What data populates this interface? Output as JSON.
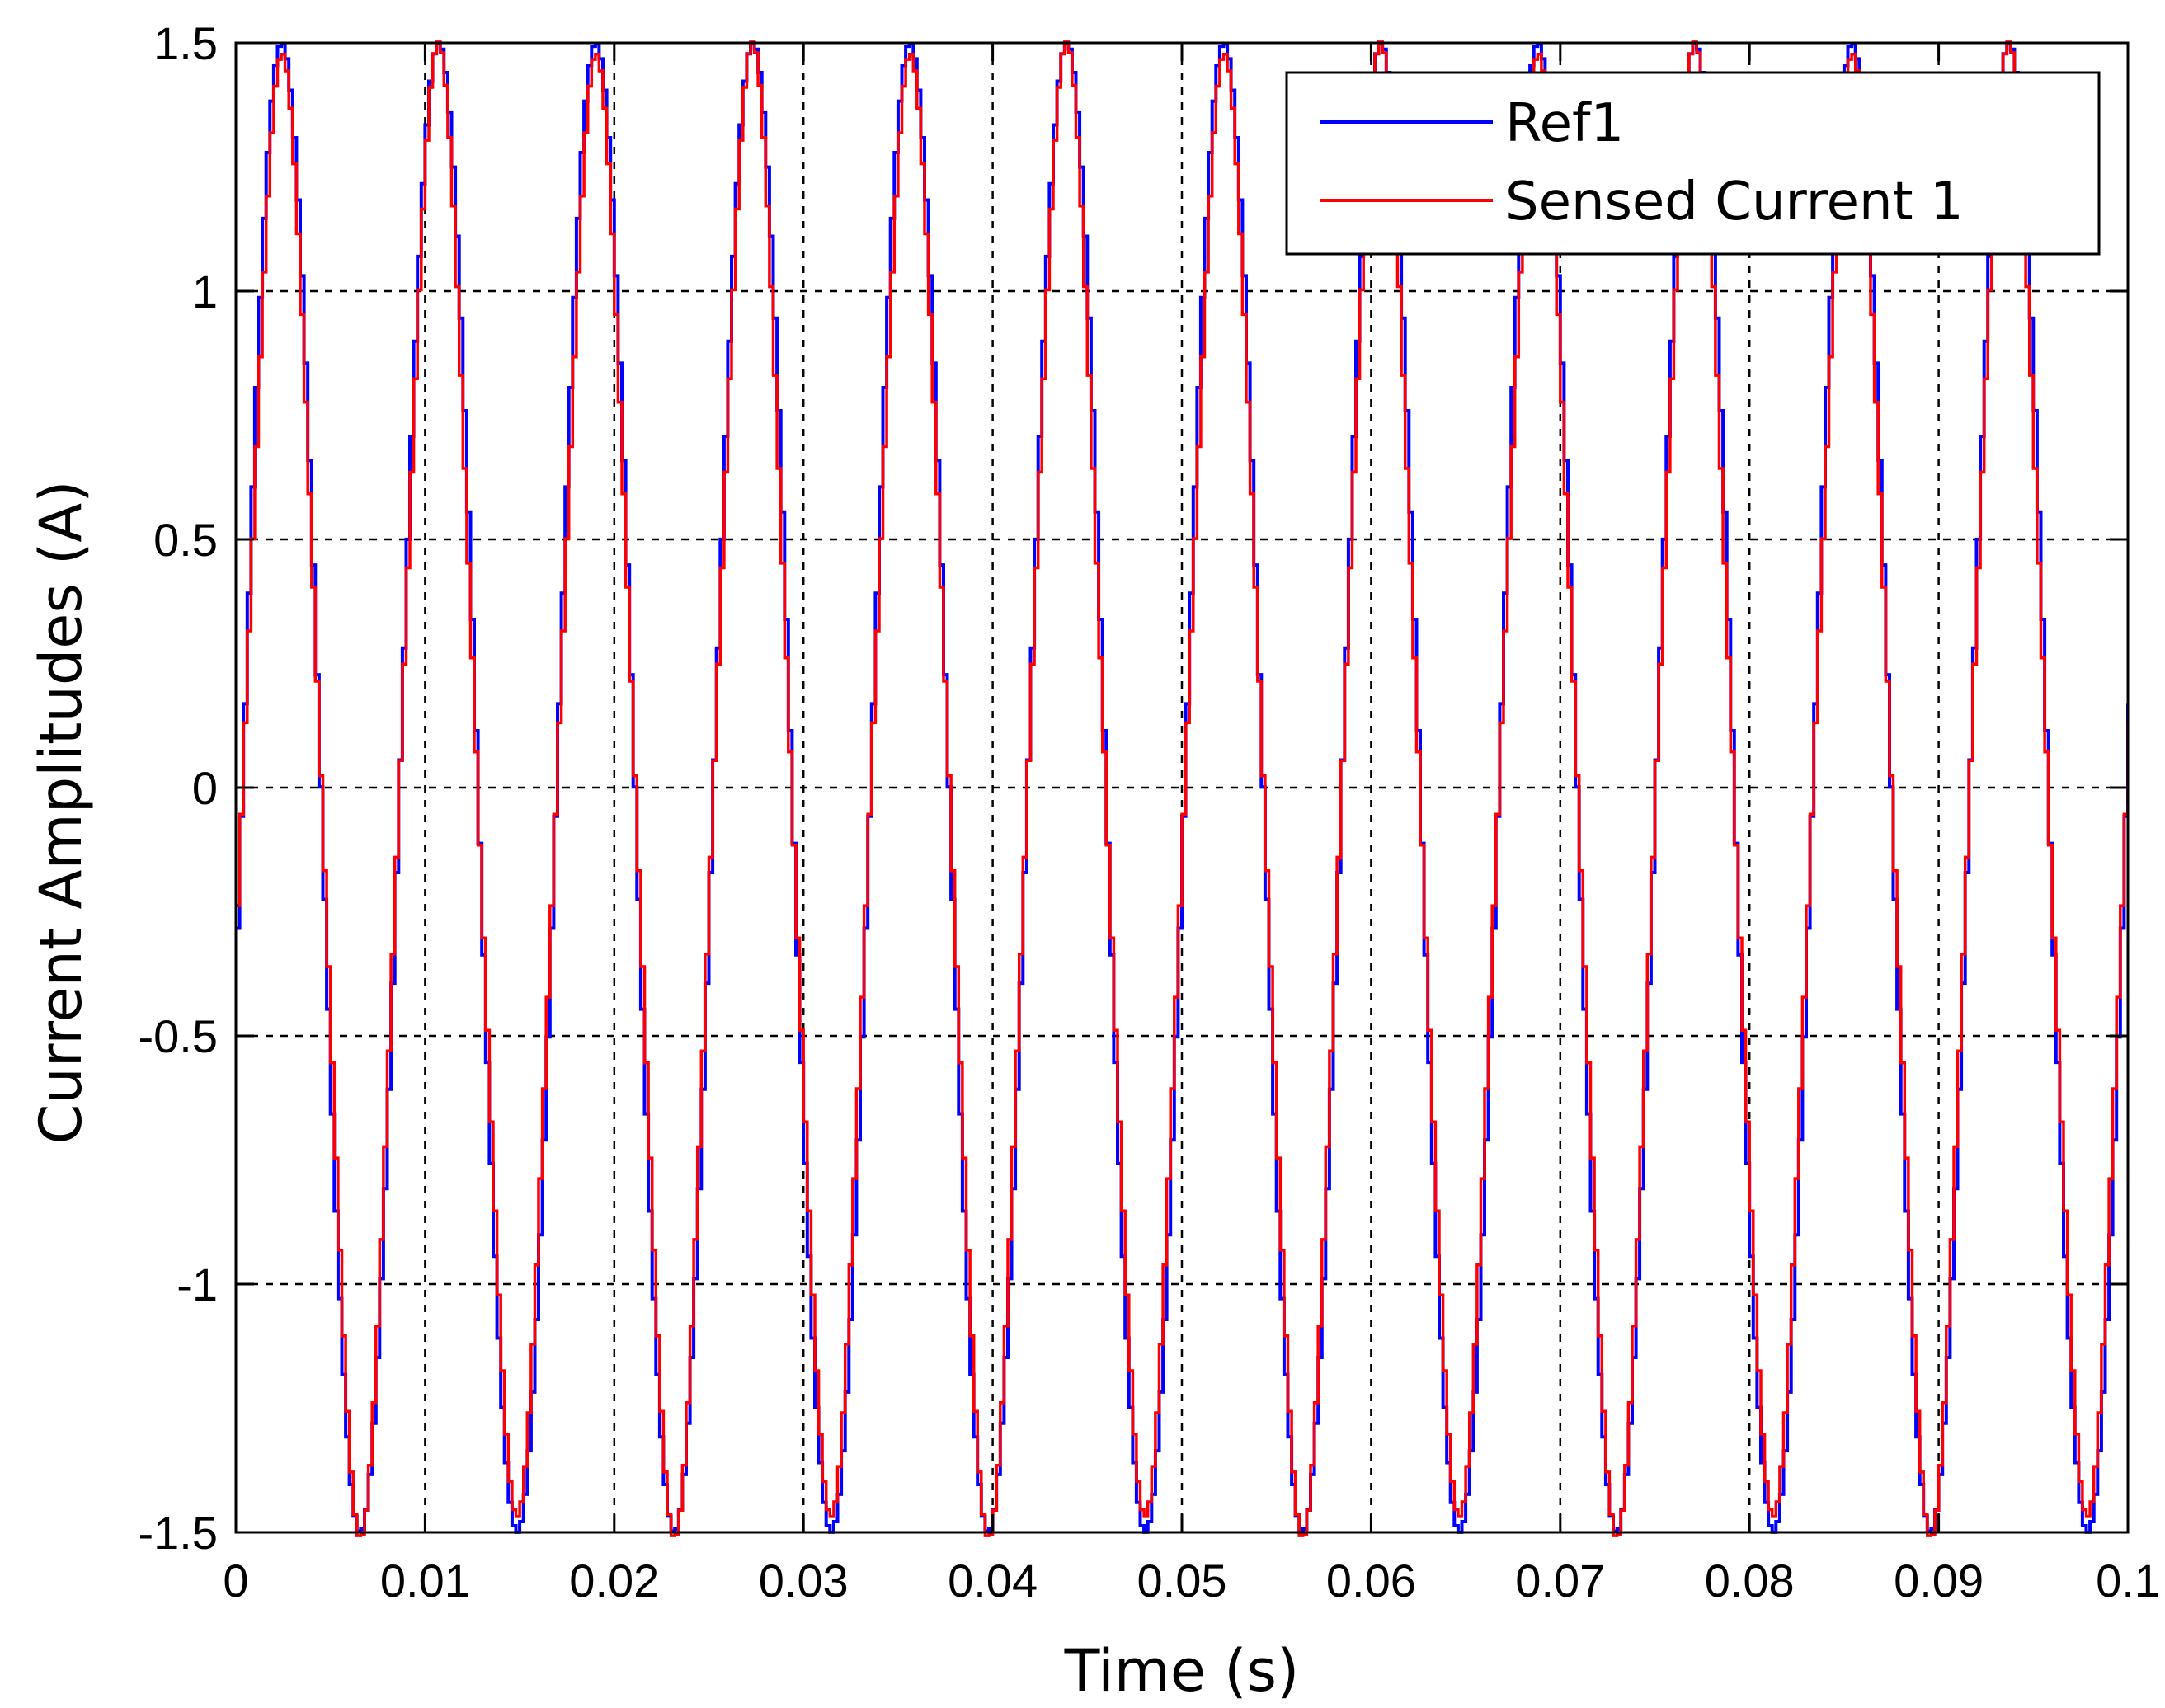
{
  "chart_data": {
    "type": "line",
    "title": "",
    "xlabel": "Time (s)",
    "ylabel": "Current Amplitudes (A)",
    "xlim": [
      0,
      0.1
    ],
    "ylim": [
      -1.5,
      1.5
    ],
    "x_ticks": [
      "0",
      "0.01",
      "0.02",
      "0.03",
      "0.04",
      "0.05",
      "0.06",
      "0.07",
      "0.08",
      "0.09",
      "0.1"
    ],
    "y_ticks": [
      "-1.5",
      "-1",
      "-0.5",
      "0",
      "0.5",
      "1",
      "1.5"
    ],
    "grid": true,
    "legend_position": "top-right",
    "series": [
      {
        "name": "Ref1",
        "color": "#0000ff",
        "waveform": "sine",
        "amplitude": 1.5,
        "period": 0.0083,
        "phase_at_zero": -0.19,
        "step": 0.0002
      },
      {
        "name": "Sensed Current 1",
        "color": "#ff0000",
        "waveform": "sine",
        "amplitude": 1.43,
        "period": 0.0083,
        "phase_at_zero": -0.19,
        "ripple": 0.06,
        "step": 0.0002
      }
    ]
  }
}
